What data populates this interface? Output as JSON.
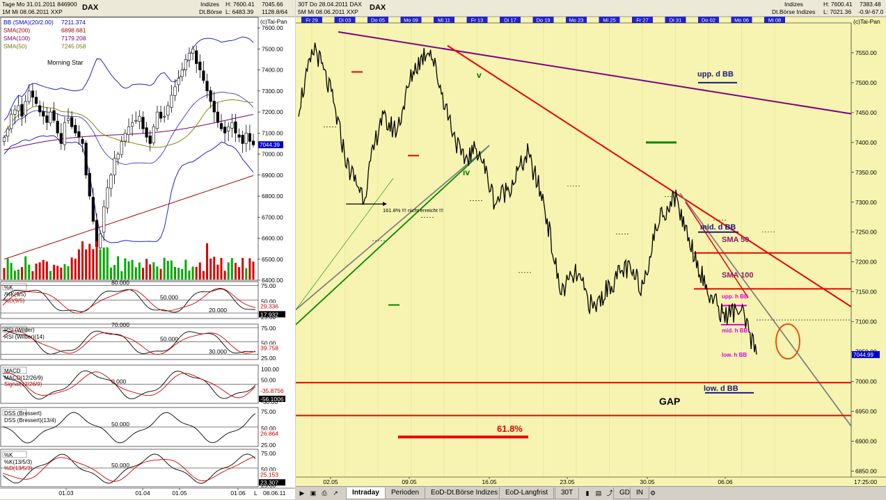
{
  "left": {
    "header": {
      "line1": "Tage Mo 31.01.2011 846900",
      "line2": "1M  Mi 08.06.2011  XXP",
      "symbol": "DAX",
      "indizes": "Indizes",
      "exchange": "Dt.Börse",
      "high": "H: 7600.41",
      "low": "L: 6483.39",
      "v1": "7045.66",
      "v2": "1128.8/64"
    },
    "watermark": "(c)Tai-Pan",
    "legend": [
      {
        "label": "BB (SMA)(20/2.00)",
        "value": "7211.374",
        "color": "#0000cc"
      },
      {
        "label": "SMA(200)",
        "value": "6898.681",
        "color": "#aa0000"
      },
      {
        "label": "SMA(100)",
        "value": "7179.208",
        "color": "#770077"
      },
      {
        "label": "SMA(50)",
        "value": "7245.058",
        "color": "#777700"
      }
    ],
    "annotation": "Morning Star",
    "current_price": "7044.39",
    "price_axis": [
      "7600.00",
      "7500.00",
      "7400.00",
      "7300.00",
      "7200.00",
      "7100.00",
      "7000.00",
      "6900.00",
      "6800.00",
      "6700.00",
      "6600.00",
      "6500.00",
      "6400.00"
    ],
    "date_axis": [
      "01.03",
      "01.04",
      "01.05",
      "01.06"
    ],
    "date_right": "08.06.11",
    "indicators": [
      {
        "name": "%K",
        "line1": "/%K(9/5)",
        "line2": "%D(9/5)",
        "levels": [
          "80.000",
          "50.000",
          "20.000"
        ],
        "axis": [
          "75.00",
          "50.00",
          "25.00"
        ],
        "val1": "29.336",
        "val2": "17.932"
      },
      {
        "name": "RSI (Wilder)",
        "line1": "RSI (Wilder)(14)",
        "line2": "",
        "levels": [
          "70.000",
          "50.000",
          "30.000"
        ],
        "axis": [
          "75.00",
          "50.00",
          "25.00"
        ],
        "val1": "39.758",
        "val2": ""
      },
      {
        "name": "MACD",
        "line1": "MACD(12/26/9)",
        "line2": "Signal(12/26/9)",
        "levels": [
          "0.000"
        ],
        "axis": [
          "100.00",
          "50.00",
          "0.00",
          "-50.00"
        ],
        "val1": "-35.8756",
        "val2": "-56.1006"
      },
      {
        "name": "DSS (Bressert)",
        "line1": "DSS (Bressert)(13/4)",
        "line2": "",
        "levels": [
          "50.000"
        ],
        "axis": [
          "75.00",
          "50.00",
          "25.00"
        ],
        "val1": "26.864",
        "val2": ""
      },
      {
        "name": "%K",
        "line1": "%K(13/5/3)",
        "line2": "%D(13/5/3)",
        "levels": [
          "50.000"
        ],
        "axis": [
          "75.00",
          "50.00",
          "25.00"
        ],
        "val1": "25.153",
        "val2": "23.307"
      }
    ]
  },
  "right": {
    "header": {
      "line1": "30T  Do 28.04.2011 DAX",
      "line2": "5M  Mi 08.06.2011  XXP",
      "symbol": "DAX",
      "indizes": "Indizes",
      "exchange": "Dt.Börse Indizes",
      "high": "H: 7600.41",
      "low": "L: 7021.36",
      "v1": "7383.48",
      "v2": "-0.9/-67.0"
    },
    "watermark": "(c)Tai-Pan",
    "day_labels": [
      "Fr 29",
      "Di 03",
      "Do 05",
      "Mo 09",
      "Mi 11",
      "Fr 13",
      "Di 17",
      "Do 19",
      "Mo 23",
      "Mi 25",
      "Fr 27",
      "Di 31",
      "Do 02",
      "Mo 06",
      "Mi 08"
    ],
    "price_axis": [
      "7550.00",
      "7500.00",
      "7450.00",
      "7400.00",
      "7350.00",
      "7300.00",
      "7250.00",
      "7200.00",
      "7150.00",
      "7100.00",
      "7050.00",
      "7000.00",
      "6950.00",
      "6900.00",
      "6850.00"
    ],
    "date_axis": [
      "02.05",
      "09.05",
      "16.05",
      "23.05",
      "30.05",
      "06.06"
    ],
    "time_right": "17:25:00",
    "current_price": "7044.99",
    "annotations": {
      "upp_d_bb": "upp. d BB",
      "mid_d_bb": "mid. d BB",
      "sma50": "SMA 50",
      "sma100": "SMA 100",
      "upp_h_bb": "upp. h BB",
      "mid_h_bb": "mid. h BB",
      "low_h_bb": "low. h BB",
      "low_d_bb": "low. d BB",
      "gap": "GAP",
      "fib618": "61.8%",
      "fib_note": "161.8% !!! nicht erreicht !!!",
      "wave_v": "v",
      "wave_iv": "iv"
    }
  },
  "tabs": [
    {
      "label": "Intraday",
      "active": true
    },
    {
      "label": "Perioden",
      "active": false
    },
    {
      "label": "EoD-Dt.Börse Indizes",
      "active": false
    },
    {
      "label": "EoD-Langfrist",
      "active": false
    }
  ],
  "toolbar": {
    "interval": "30T",
    "gd": "GD",
    "in": "IN"
  },
  "chart_data": [
    {
      "type": "candlestick",
      "title": "DAX",
      "timeframe": "daily",
      "x_range": [
        "2011-01-31",
        "2011-06-08"
      ],
      "ylim": [
        6400,
        7650
      ],
      "y_ticks": [
        7600,
        7500,
        7400,
        7300,
        7200,
        7100,
        7000,
        6900,
        6800,
        6700,
        6600,
        6500,
        6400
      ],
      "x_ticks": [
        "01.03",
        "01.04",
        "01.05",
        "01.06"
      ],
      "series": [
        {
          "name": "BB (SMA)(20/2.00)",
          "last": 7211.374
        },
        {
          "name": "SMA(200)",
          "last": 6898.681
        },
        {
          "name": "SMA(100)",
          "last": 7179.208
        },
        {
          "name": "SMA(50)",
          "last": 7245.058
        }
      ],
      "close": [
        7080,
        7120,
        7190,
        7210,
        7230,
        7180,
        7250,
        7300,
        7270,
        7240,
        7200,
        7180,
        7150,
        7200,
        7160,
        7100,
        7050,
        7150,
        7170,
        7130,
        7100,
        7080,
        7050,
        6900,
        6800,
        6680,
        6560,
        6620,
        6750,
        6840,
        6900,
        6980,
        7000,
        7060,
        7100,
        7130,
        7150,
        7160,
        7180,
        7120,
        7080,
        7050,
        7130,
        7200,
        7170,
        7180,
        7230,
        7280,
        7320,
        7360,
        7400,
        7450,
        7480,
        7500,
        7430,
        7400,
        7350,
        7300,
        7250,
        7200,
        7150,
        7120,
        7100,
        7130,
        7150,
        7100,
        7080,
        7050,
        7100,
        7060,
        7044
      ],
      "last": 7044.39,
      "grid": true
    },
    {
      "type": "line",
      "title": "DAX",
      "timeframe": "intraday 30 min",
      "x_range": [
        "2011-04-29",
        "2011-06-08"
      ],
      "ylim": [
        6840,
        7600
      ],
      "y_ticks": [
        7550,
        7500,
        7450,
        7400,
        7350,
        7300,
        7250,
        7200,
        7150,
        7100,
        7050,
        7000,
        6950,
        6900,
        6850
      ],
      "x_ticks": [
        "02.05",
        "09.05",
        "16.05",
        "23.05",
        "30.05",
        "06.06"
      ],
      "x": [
        "29.04",
        "02.05",
        "03.05",
        "04.05",
        "05.05",
        "06.05",
        "09.05",
        "10.05",
        "11.05",
        "12.05",
        "13.05",
        "16.05",
        "17.05",
        "18.05",
        "19.05",
        "20.05",
        "23.05",
        "24.05",
        "25.05",
        "26.05",
        "27.05",
        "30.05",
        "31.05",
        "01.06",
        "02.06",
        "03.06",
        "06.06",
        "07.06",
        "08.06"
      ],
      "values": [
        7460,
        7560,
        7480,
        7360,
        7310,
        7440,
        7420,
        7520,
        7560,
        7460,
        7370,
        7390,
        7300,
        7330,
        7380,
        7300,
        7150,
        7180,
        7120,
        7160,
        7190,
        7160,
        7270,
        7310,
        7230,
        7150,
        7110,
        7120,
        7045
      ],
      "levels": [
        {
          "label": "SMA 50",
          "value": 7215
        },
        {
          "label": "SMA 100",
          "value": 7155
        },
        {
          "label": "low. d BB",
          "value": 6998
        },
        {
          "label": "61.8%",
          "value": 6943
        }
      ],
      "last": 7044.99,
      "grid": false
    }
  ]
}
